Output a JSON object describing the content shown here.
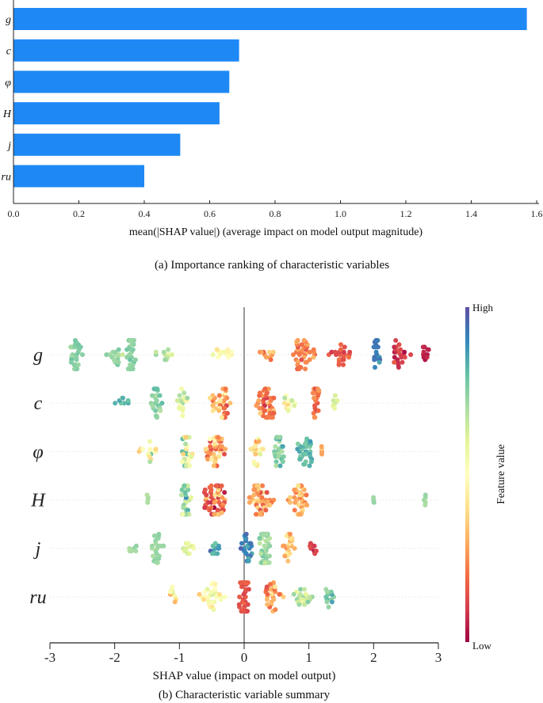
{
  "chart_data": [
    {
      "type": "bar",
      "orientation": "horizontal",
      "categories": [
        "g",
        "c",
        "φ",
        "H",
        "j",
        "ru"
      ],
      "values": [
        1.57,
        0.69,
        0.66,
        0.63,
        0.51,
        0.4
      ],
      "xlim": [
        0,
        1.6
      ],
      "xticks": [
        "0.0",
        "0.2",
        "0.4",
        "0.6",
        "0.8",
        "1.0",
        "1.2",
        "1.4",
        "1.6"
      ],
      "xlabel": "mean(|SHAP value|) (average impact on model output magnitude)",
      "caption": "(a) Importance ranking of characteristic variables",
      "bar_color": "#1e88f5"
    },
    {
      "type": "scatter",
      "subtype": "beeswarm",
      "features": [
        {
          "name": "g",
          "shap_range": [
            -2.9,
            2.9
          ],
          "pattern": "g"
        },
        {
          "name": "c",
          "shap_range": [
            -2.3,
            1.5
          ],
          "pattern": "c"
        },
        {
          "name": "φ",
          "shap_range": [
            -1.8,
            1.2
          ],
          "pattern": "phi"
        },
        {
          "name": "H",
          "shap_range": [
            -1.5,
            2.8
          ],
          "pattern": "H"
        },
        {
          "name": "j",
          "shap_range": [
            -1.9,
            1.15
          ],
          "pattern": "j"
        },
        {
          "name": "ru",
          "shap_range": [
            -1.2,
            1.45
          ],
          "pattern": "ru"
        }
      ],
      "xlim": [
        -3,
        3
      ],
      "xticks": [
        "-3",
        "-2",
        "-1",
        "0",
        "1",
        "2",
        "3"
      ],
      "xlabel": "SHAP value (impact on model output)",
      "colorbar": {
        "label": "Feature value",
        "high": "High",
        "low": "Low"
      },
      "caption": "(b) Characteristic variable summary",
      "colormap": [
        "#9e0142",
        "#d53e4f",
        "#f46d43",
        "#fdae61",
        "#fee08b",
        "#ffffbf",
        "#e6f598",
        "#abdda4",
        "#66c2a5",
        "#3288bd",
        "#5e4fa2"
      ]
    }
  ]
}
